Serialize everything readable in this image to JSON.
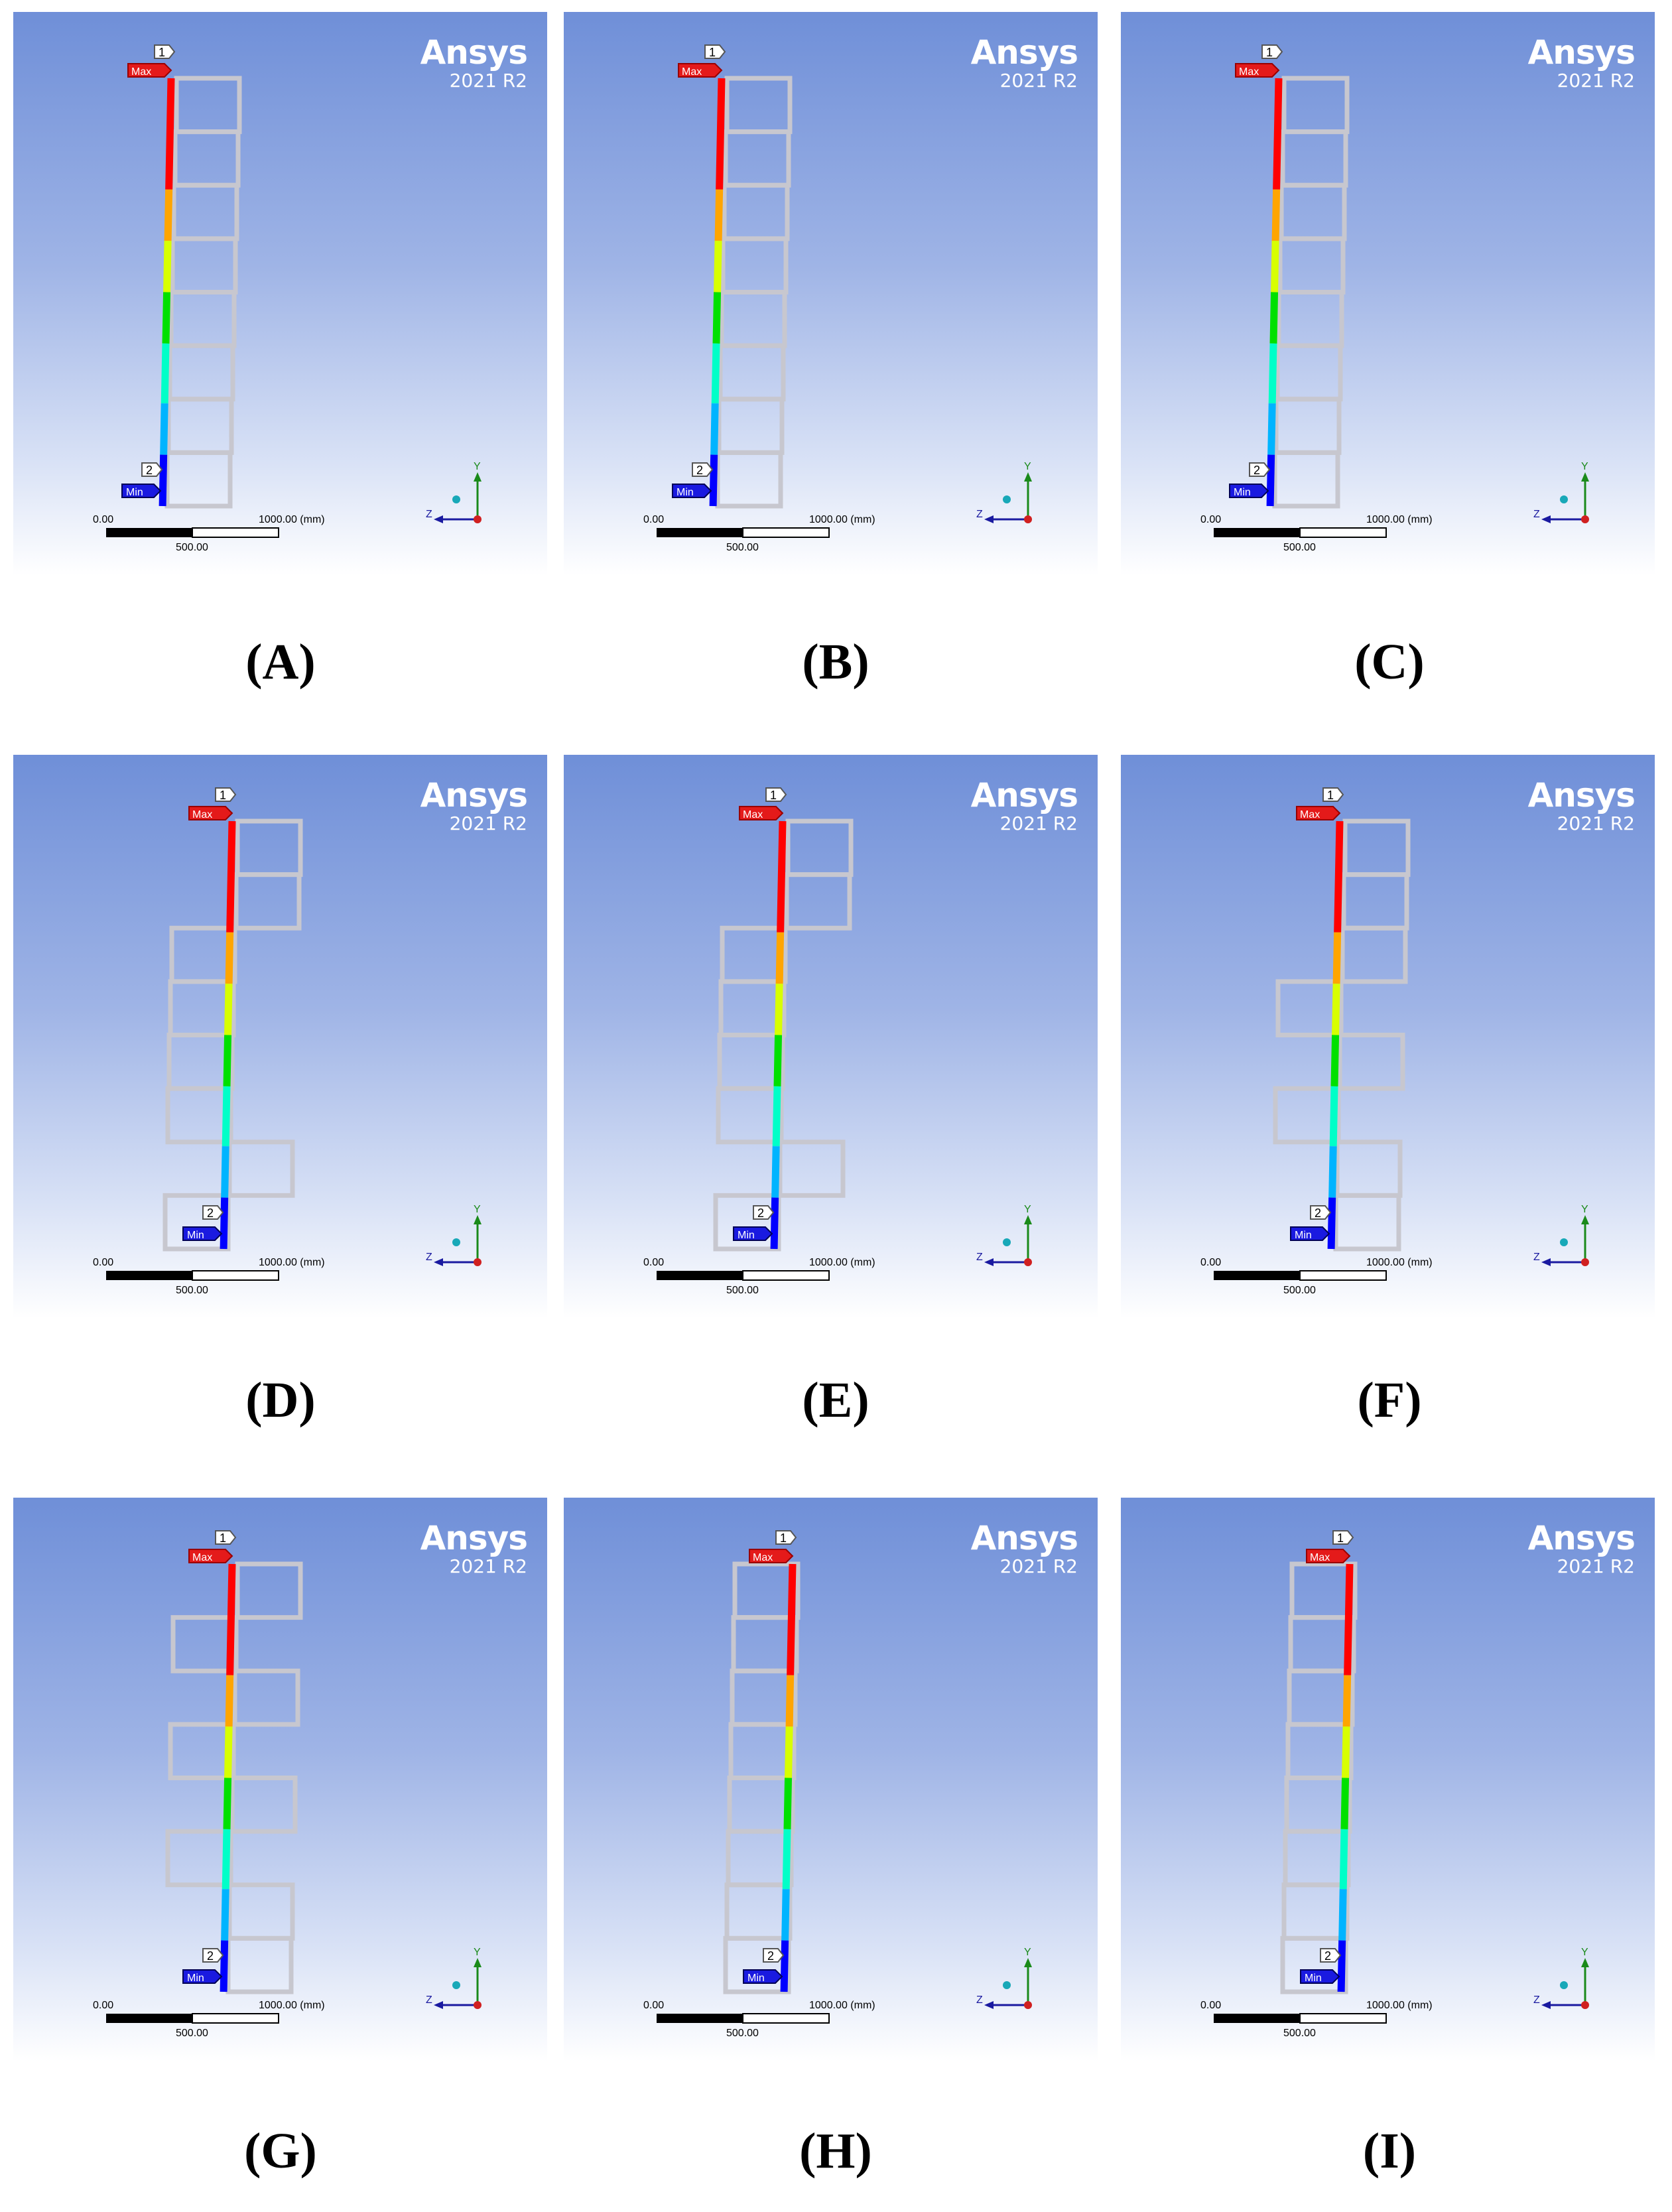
{
  "figure": {
    "brand_name": "Ansys",
    "brand_version": "2021 R2",
    "probe_max_number": "1",
    "probe_min_number": "2",
    "max_label": "Max",
    "min_label": "Min",
    "scale_start": "0.00",
    "scale_end": "1000.00 (mm)",
    "scale_mid": "500.00",
    "axis_y": "Y",
    "axis_z": "Z",
    "legend_colors": [
      "#0000ff",
      "#00b4ff",
      "#00ffc8",
      "#00e000",
      "#d8ff00",
      "#ffa500",
      "#ff0000"
    ]
  },
  "panels": [
    {
      "caption": "(A)",
      "pattern": [
        1,
        1,
        1,
        1,
        1,
        1,
        1,
        1
      ]
    },
    {
      "caption": "(B)",
      "pattern": [
        1,
        1,
        1,
        1,
        1,
        1,
        1,
        1
      ]
    },
    {
      "caption": "(C)",
      "pattern": [
        1,
        1,
        1,
        1,
        1,
        1,
        1,
        1
      ]
    },
    {
      "caption": "(D)",
      "pattern": [
        1,
        1,
        -1,
        -1,
        -1,
        -1,
        1,
        -1
      ]
    },
    {
      "caption": "(E)",
      "pattern": [
        1,
        1,
        -1,
        -1,
        -1,
        -1,
        1,
        -1
      ]
    },
    {
      "caption": "(F)",
      "pattern": [
        1,
        1,
        1,
        -1,
        1,
        -1,
        1,
        1
      ]
    },
    {
      "caption": "(G)",
      "pattern": [
        1,
        -1,
        1,
        -1,
        1,
        -1,
        1,
        1
      ]
    },
    {
      "caption": "(H)",
      "pattern": [
        -1,
        -1,
        -1,
        -1,
        -1,
        -1,
        -1,
        -1
      ]
    },
    {
      "caption": "(I)",
      "pattern": [
        -1,
        -1,
        -1,
        -1,
        -1,
        -1,
        -1,
        -1
      ]
    }
  ]
}
